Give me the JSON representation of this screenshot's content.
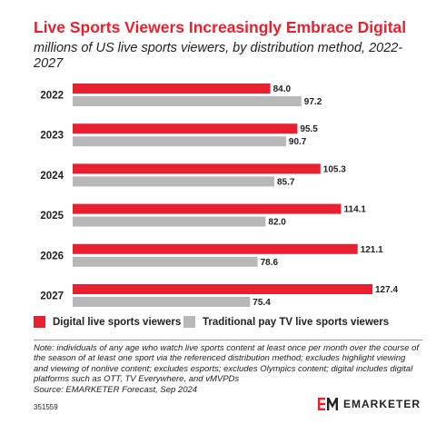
{
  "title": "Live Sports Viewers Increasingly Embrace Digital",
  "subtitle": "millions of US live sports viewers, by distribution method, 2022-2027",
  "legend": {
    "digital": "Digital live sports viewers",
    "traditional": "Traditional pay TV live sports viewers"
  },
  "note": "Note: individuals of any age who watch live sports content at least once per month over the course of the season of at least one sport via the referenced distribution method; excludes highlight viewing and viewing of nonlive content; excludes esports; excludes Olympics content; digital includes digital platforms such as OTT, TV Everywhere, and vMVPDs",
  "source": "Source: EMARKETER Forecast, Sep 2024",
  "chart_id": "351559",
  "brand": {
    "logo_text": "EM",
    "name": "EMARKETER"
  },
  "colors": {
    "digital": "#e8202f",
    "traditional": "#b8b8b8",
    "title": "#e8202f"
  },
  "chart_data": {
    "type": "bar",
    "orientation": "horizontal",
    "categories": [
      "2022",
      "2023",
      "2024",
      "2025",
      "2026",
      "2027"
    ],
    "series": [
      {
        "name": "Digital live sports viewers",
        "values": [
          84.0,
          95.5,
          105.3,
          114.1,
          121.1,
          127.4
        ]
      },
      {
        "name": "Traditional pay TV live sports viewers",
        "values": [
          97.2,
          90.7,
          85.7,
          82.0,
          78.6,
          75.4
        ]
      }
    ],
    "value_labels": [
      [
        "84.0",
        "95.5",
        "105.3",
        "114.1",
        "121.1",
        "127.4"
      ],
      [
        "97.2",
        "90.7",
        "85.7",
        "82.0",
        "78.6",
        "75.4"
      ]
    ],
    "xlim": [
      0,
      140
    ],
    "grid": false,
    "legend_position": "bottom"
  }
}
